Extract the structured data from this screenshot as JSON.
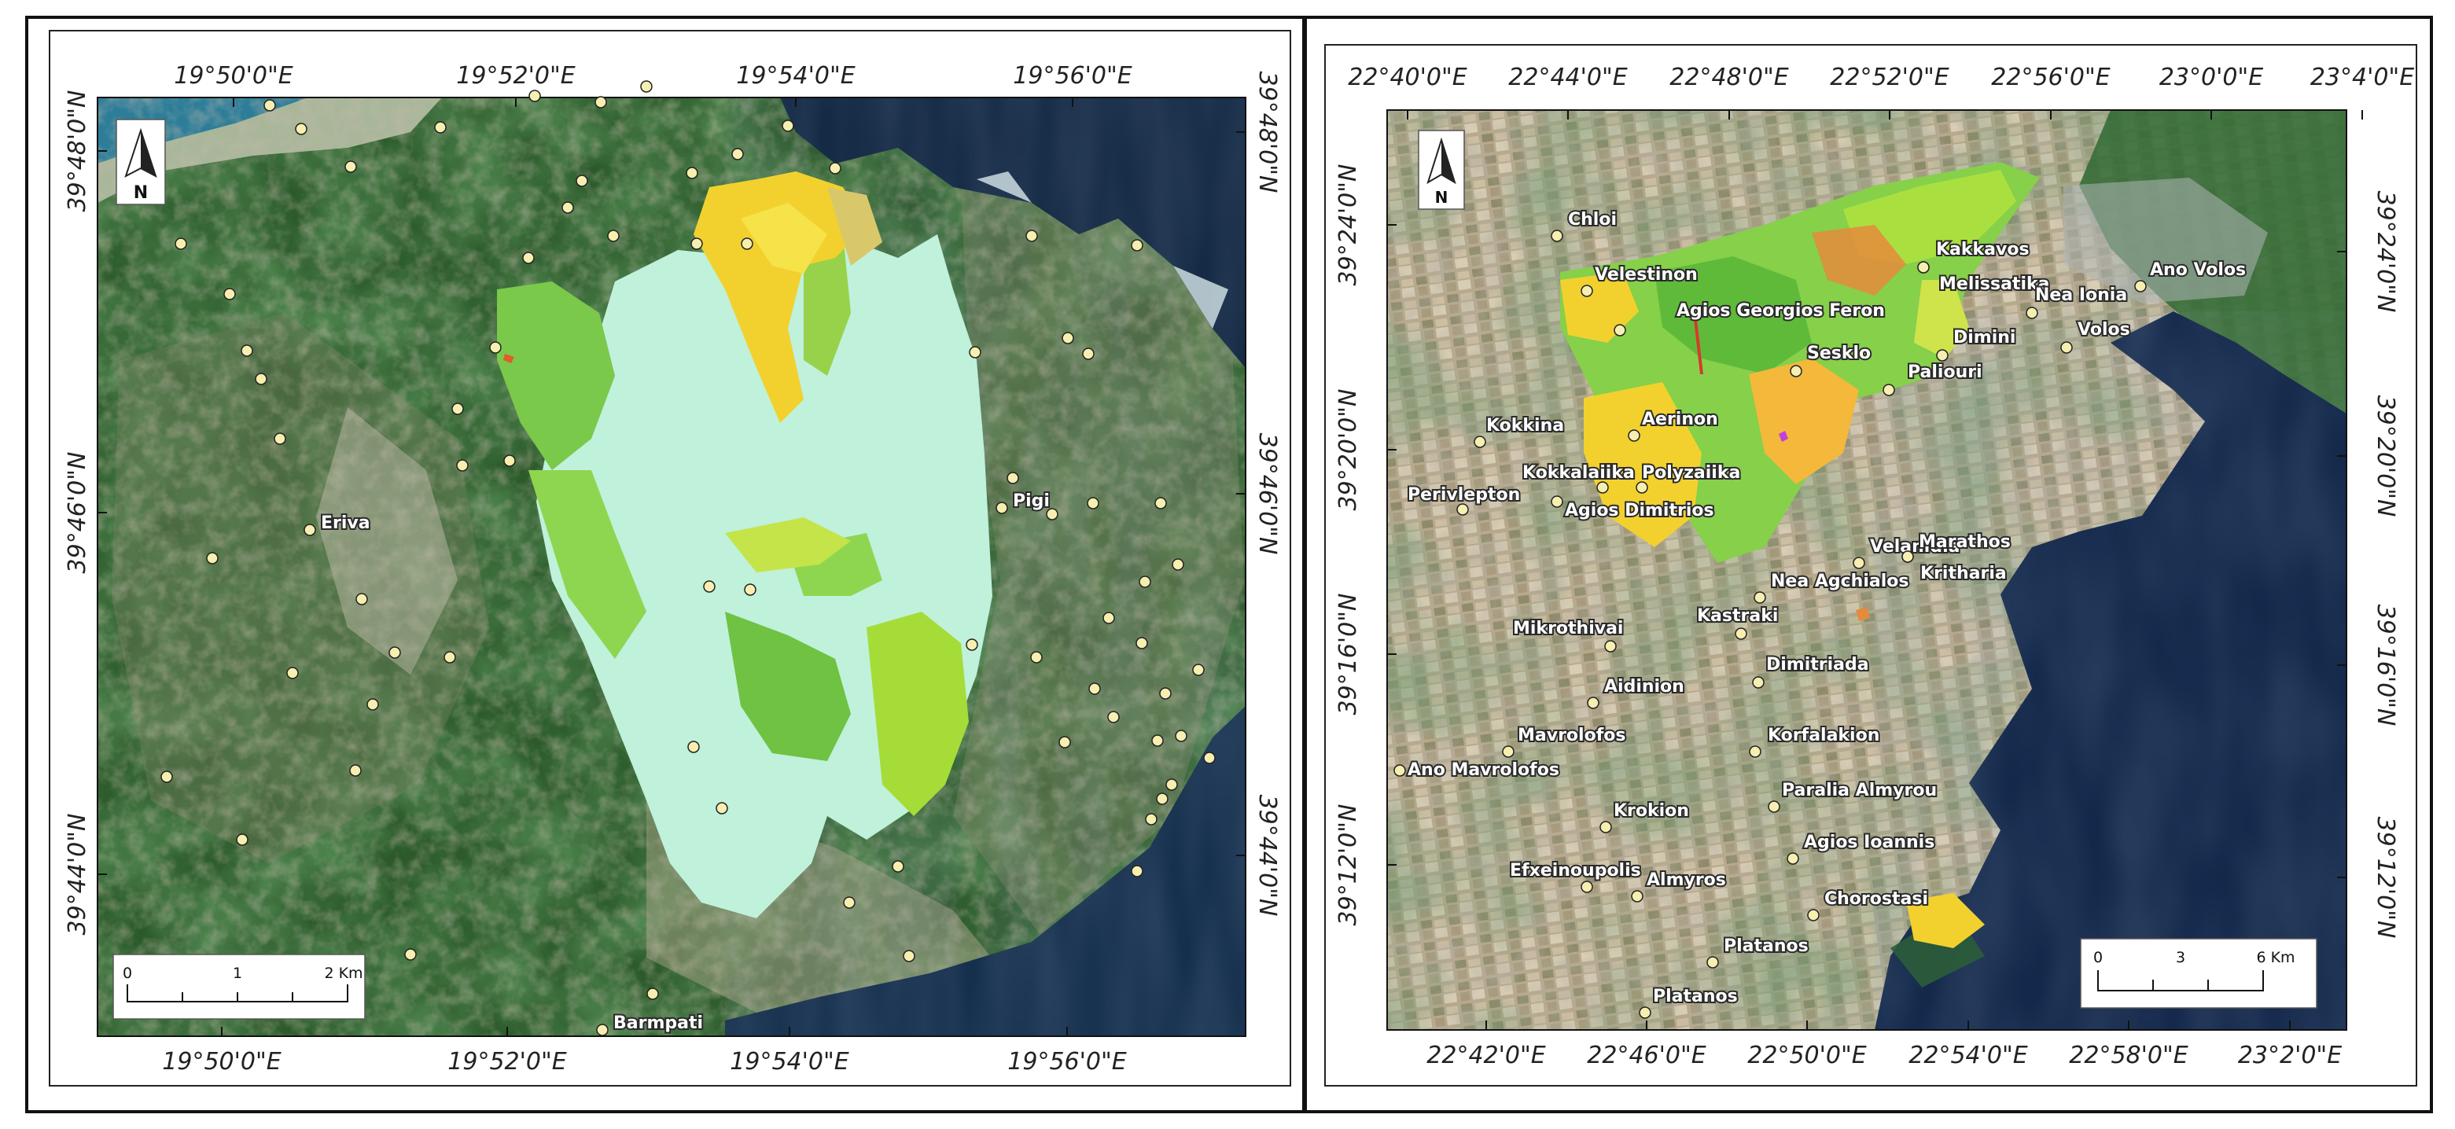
{
  "left_map": {
    "lon_ticks": [
      "19°50'0\"E",
      "19°52'0\"E",
      "19°54'0\"E",
      "19°56'0\"E"
    ],
    "lat_ticks": [
      "39°48'0\"N",
      "39°46'0\"N",
      "39°44'0\"N"
    ],
    "north_label": "N",
    "scalebar": {
      "labels": [
        "0",
        "1",
        "2 Km"
      ]
    },
    "places": [
      "Eriva",
      "Pigi",
      "Barmpati"
    ]
  },
  "right_map": {
    "lon_ticks_top": [
      "22°40'0\"E",
      "22°44'0\"E",
      "22°48'0\"E",
      "22°52'0\"E",
      "22°56'0\"E",
      "23°0'0\"E",
      "23°4'0\"E"
    ],
    "lon_ticks_bottom": [
      "22°42'0\"E",
      "22°46'0\"E",
      "22°50'0\"E",
      "22°54'0\"E",
      "22°58'0\"E",
      "23°2'0\"E"
    ],
    "lat_ticks_left": [
      "39°24'0\"N",
      "39°20'0\"N",
      "39°16'0\"N",
      "39°12'0\"N"
    ],
    "lat_ticks_right": [
      "39°24'0\"N",
      "39°20'0\"N",
      "39°16'0\"N",
      "39°12'0\"N"
    ],
    "north_label": "N",
    "scalebar": {
      "labels": [
        "0",
        "3",
        "6 Km"
      ]
    },
    "places": [
      "Chloi",
      "Velestinon",
      "Agios Georgios Feron",
      "Kakkavos",
      "Melissatika",
      "Nea Ionia",
      "Ano Volos",
      "Volos",
      "Dimini",
      "Paliouri",
      "Sesklo",
      "Aerinon",
      "Kokkina",
      "Kokkalaiika",
      "Polyzaiika",
      "Perivlepton",
      "Agios Dimitrios",
      "Velanidia",
      "Marathos",
      "Kritharia",
      "Nea Agchialos",
      "Kastraki",
      "Mikrothivai",
      "Dimitriada",
      "Aidinion",
      "Mavrolofos",
      "Ano Mavrolofos",
      "Korfalakion",
      "Paralia Almyrou",
      "Krokion",
      "Agios Ioannis",
      "Efxeinoupolis",
      "Almyros",
      "Chorostasi",
      "Platanos",
      "Platanos"
    ]
  }
}
